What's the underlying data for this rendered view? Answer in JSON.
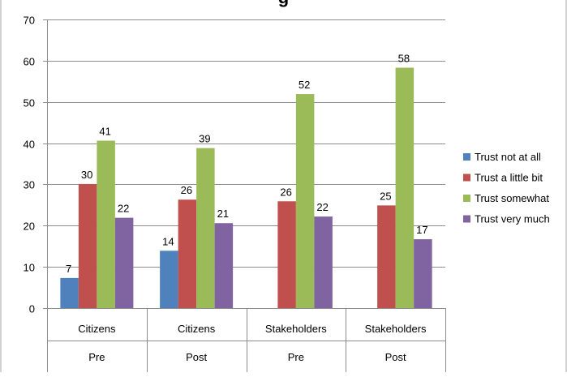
{
  "title_fragment": "g",
  "chart_data": {
    "type": "bar",
    "categories": [
      {
        "group": "Citizens",
        "phase": "Pre"
      },
      {
        "group": "Citizens",
        "phase": "Post"
      },
      {
        "group": "Stakeholders",
        "phase": "Pre"
      },
      {
        "group": "Stakeholders",
        "phase": "Post"
      }
    ],
    "series": [
      {
        "name": "Trust not at all",
        "color": "#4f81bd",
        "values": [
          7.3,
          13.9,
          null,
          null
        ],
        "labels": [
          "7",
          "14",
          "",
          ""
        ]
      },
      {
        "name": "Trust a little bit",
        "color": "#c0504d",
        "values": [
          30.1,
          26.3,
          25.9,
          24.9
        ],
        "labels": [
          "30",
          "26",
          "26",
          "25"
        ]
      },
      {
        "name": "Trust somewhat",
        "color": "#9bbb59",
        "values": [
          40.6,
          38.8,
          51.9,
          58.3
        ],
        "labels": [
          "41",
          "39",
          "52",
          "58"
        ]
      },
      {
        "name": "Trust very much",
        "color": "#8064a2",
        "values": [
          21.9,
          20.6,
          22.2,
          16.7
        ],
        "labels": [
          "22",
          "21",
          "22",
          "17"
        ]
      }
    ],
    "ylim": [
      0,
      70
    ],
    "yticks": [
      0,
      10,
      20,
      30,
      40,
      50,
      60,
      70
    ],
    "grid": true,
    "legend": "right",
    "xlabel": "",
    "ylabel": ""
  }
}
